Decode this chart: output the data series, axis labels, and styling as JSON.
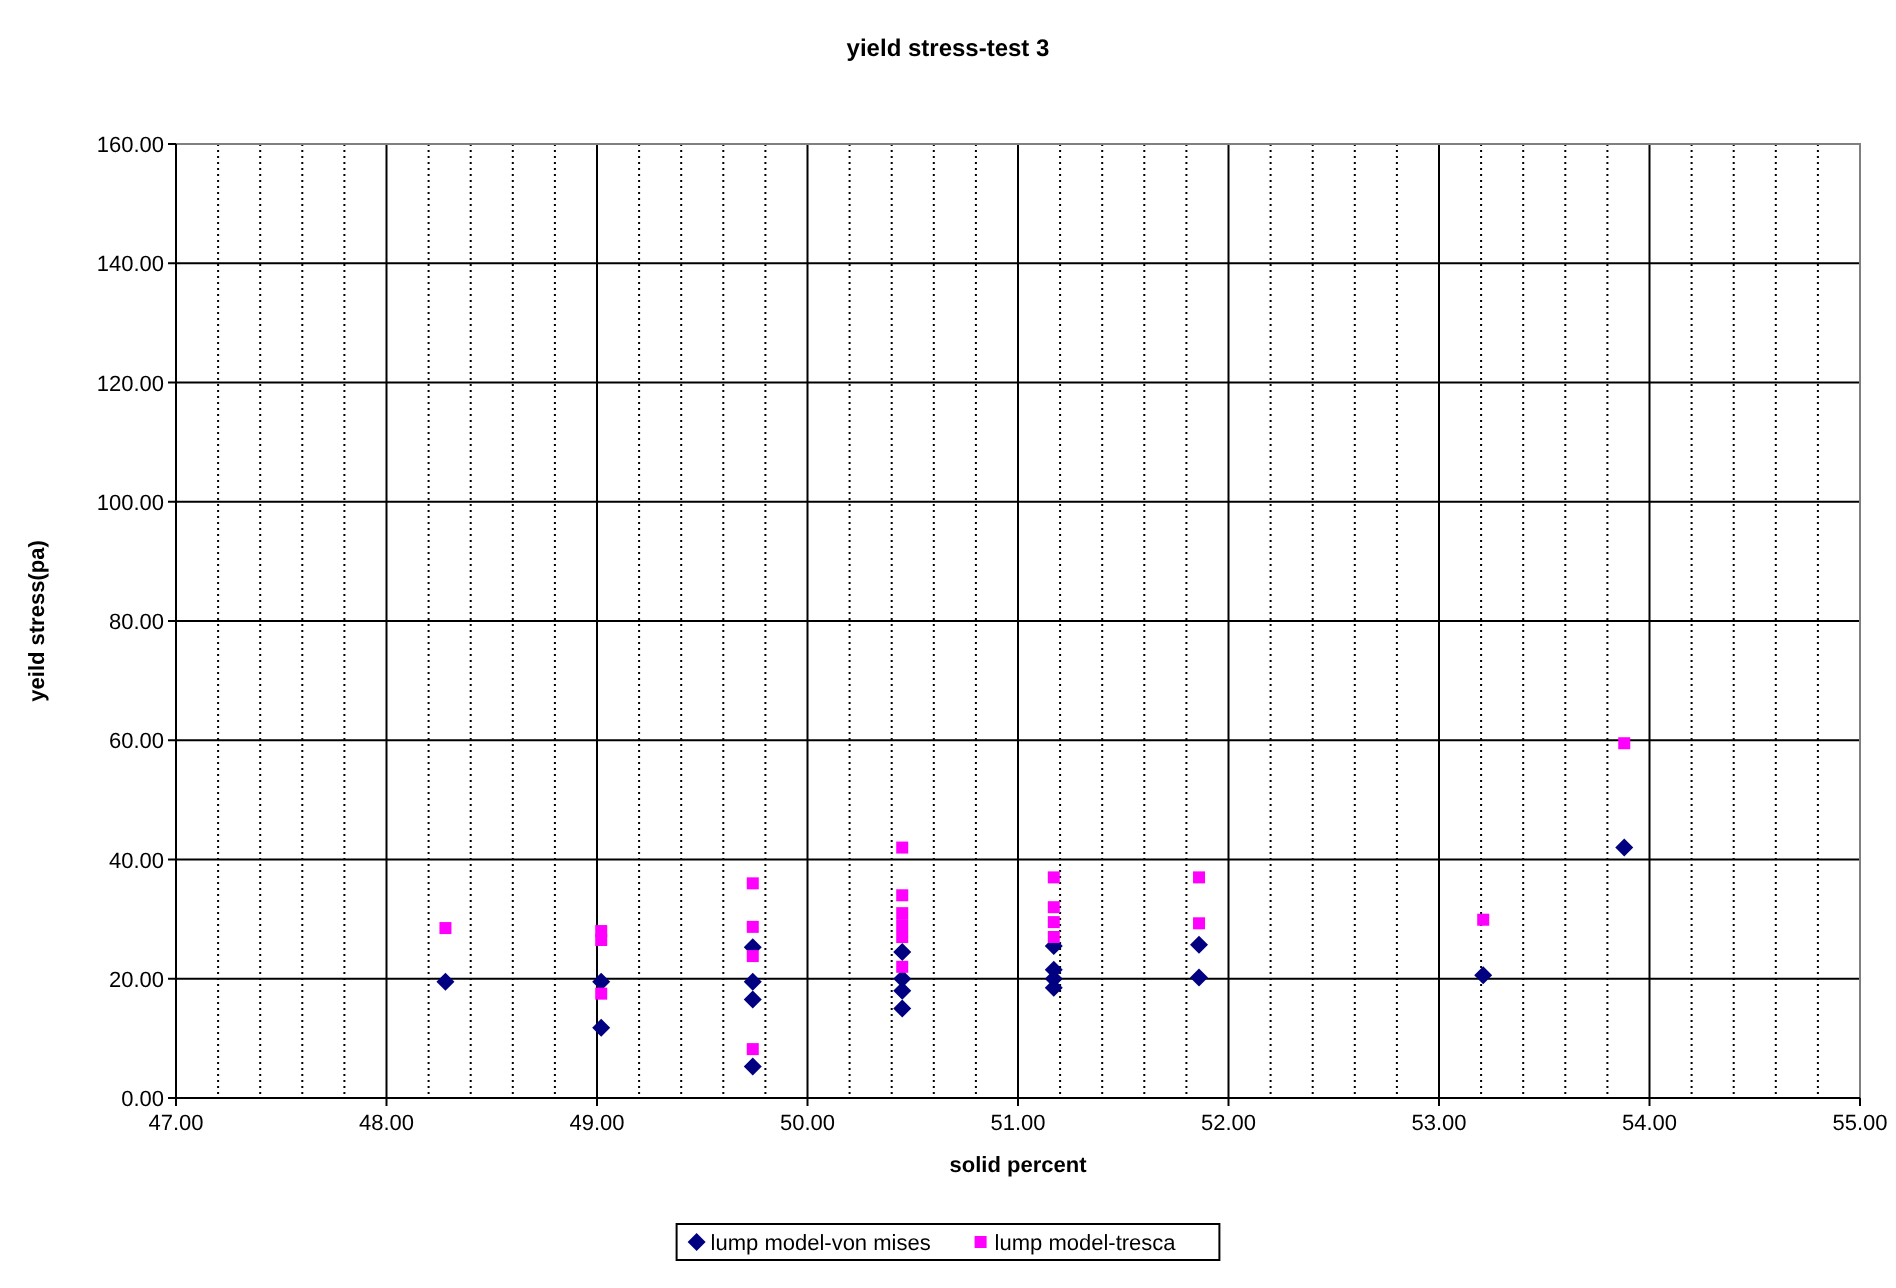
{
  "chart_data": {
    "type": "scatter",
    "title": "yield stress-test 3",
    "xlabel": "solid percent",
    "ylabel": "yeild stress(pa)",
    "xlim": [
      47,
      55
    ],
    "xticks": [
      {
        "value": 47,
        "label": "47.00"
      },
      {
        "value": 48,
        "label": "48.00"
      },
      {
        "value": 49,
        "label": "49.00"
      },
      {
        "value": 50,
        "label": "50.00"
      },
      {
        "value": 51,
        "label": "51.00"
      },
      {
        "value": 52,
        "label": "52.00"
      },
      {
        "value": 53,
        "label": "53.00"
      },
      {
        "value": 54,
        "label": "54.00"
      },
      {
        "value": 55,
        "label": "55.00"
      }
    ],
    "ylim": [
      0,
      160
    ],
    "yticks": [
      {
        "value": 0,
        "label": "0.00"
      },
      {
        "value": 20,
        "label": "20.00"
      },
      {
        "value": 40,
        "label": "40.00"
      },
      {
        "value": 60,
        "label": "60.00"
      },
      {
        "value": 80,
        "label": "80.00"
      },
      {
        "value": 100,
        "label": "100.00"
      },
      {
        "value": 120,
        "label": "120.00"
      },
      {
        "value": 140,
        "label": "140.00"
      },
      {
        "value": 160,
        "label": "160.00"
      }
    ],
    "grid": true,
    "legend": "bottom",
    "series": [
      {
        "name": "lump model-von mises",
        "color": "#000080",
        "marker": "diamond",
        "x": [
          48.28,
          49.02,
          49.02,
          49.74,
          49.74,
          49.74,
          49.74,
          50.45,
          50.45,
          50.45,
          50.45,
          51.17,
          51.17,
          51.17,
          51.17,
          51.86,
          51.86,
          53.21,
          53.88
        ],
        "values": [
          19.5,
          19.5,
          11.8,
          25.3,
          19.5,
          16.5,
          5.3,
          24.5,
          20,
          18,
          15,
          25.5,
          21.5,
          20,
          18.5,
          25.7,
          20.2,
          20.6,
          42
        ]
      },
      {
        "name": "lump model-tresca",
        "color": "#ff00ff",
        "marker": "square",
        "x": [
          48.28,
          49.02,
          49.02,
          49.02,
          49.74,
          49.74,
          49.74,
          49.74,
          50.45,
          50.45,
          50.45,
          50.45,
          50.45,
          50.45,
          51.17,
          51.17,
          51.17,
          51.17,
          51.86,
          51.86,
          53.21,
          53.88
        ],
        "values": [
          28.5,
          28,
          26.5,
          17.5,
          36,
          28.7,
          23.8,
          8.2,
          42,
          34,
          31,
          29,
          27,
          22,
          37,
          32,
          29.5,
          27,
          37,
          29.3,
          29.9,
          59.5
        ]
      }
    ]
  }
}
